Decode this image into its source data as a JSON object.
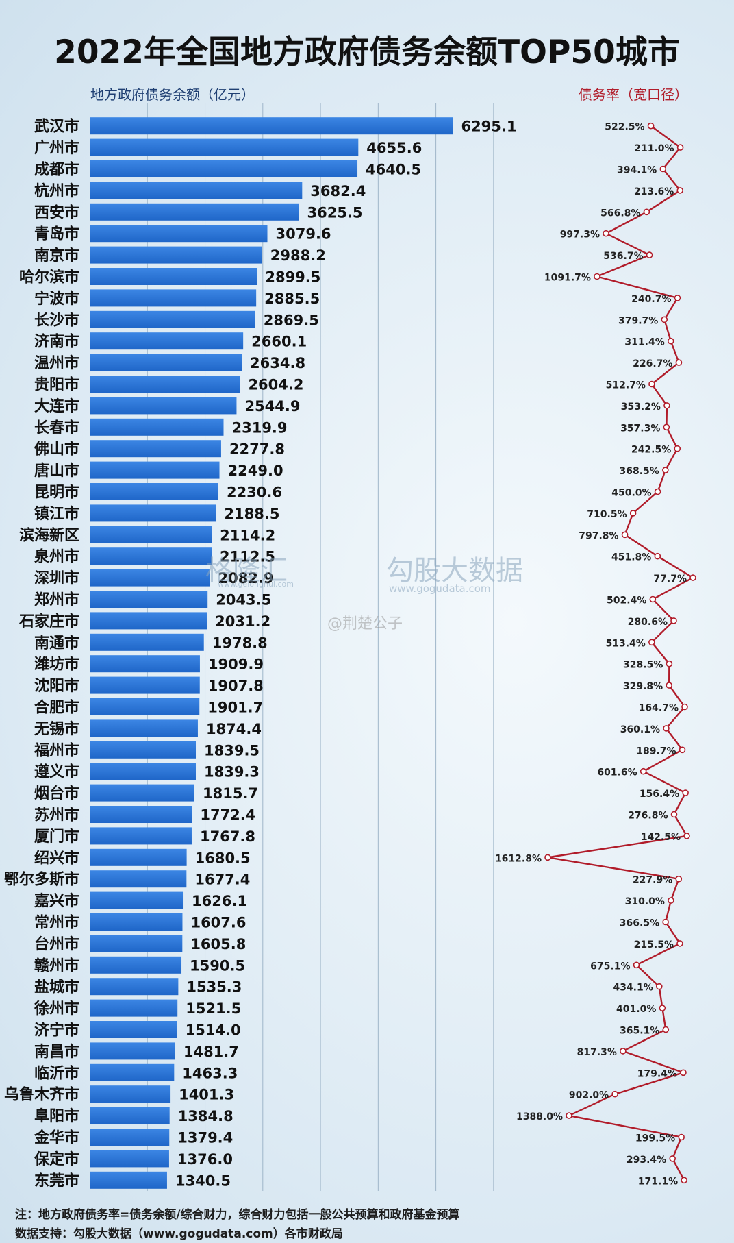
{
  "chart_data": {
    "type": "bar",
    "title": "2022年全国地方政府债务余额TOP50城市",
    "left_axis_label": "地方政府债务余额（亿元）",
    "right_axis_label": "债务率（宽口径）",
    "categories": [
      "武汉市",
      "广州市",
      "成都市",
      "杭州市",
      "西安市",
      "青岛市",
      "南京市",
      "哈尔滨市",
      "宁波市",
      "长沙市",
      "济南市",
      "温州市",
      "贵阳市",
      "大连市",
      "长春市",
      "佛山市",
      "唐山市",
      "昆明市",
      "镇江市",
      "滨海新区",
      "泉州市",
      "深圳市",
      "郑州市",
      "石家庄市",
      "南通市",
      "潍坊市",
      "沈阳市",
      "合肥市",
      "无锡市",
      "福州市",
      "遵义市",
      "烟台市",
      "苏州市",
      "厦门市",
      "绍兴市",
      "鄂尔多斯市",
      "嘉兴市",
      "常州市",
      "台州市",
      "赣州市",
      "盐城市",
      "徐州市",
      "济宁市",
      "南昌市",
      "临沂市",
      "乌鲁木齐市",
      "阜阳市",
      "金华市",
      "保定市",
      "东莞市"
    ],
    "series": [
      {
        "name": "地方政府债务余额（亿元）",
        "values": [
          6295.1,
          4655.6,
          4640.5,
          3682.4,
          3625.5,
          3079.6,
          2988.2,
          2899.5,
          2885.5,
          2869.5,
          2660.1,
          2634.8,
          2604.2,
          2544.9,
          2319.9,
          2277.8,
          2249.0,
          2230.6,
          2188.5,
          2114.2,
          2112.5,
          2082.9,
          2043.5,
          2031.2,
          1978.8,
          1909.9,
          1907.8,
          1901.7,
          1874.4,
          1839.5,
          1839.3,
          1815.7,
          1772.4,
          1767.8,
          1680.5,
          1677.4,
          1626.1,
          1607.6,
          1605.8,
          1590.5,
          1535.3,
          1521.5,
          1514.0,
          1481.7,
          1463.3,
          1401.3,
          1384.8,
          1379.4,
          1376.0,
          1340.5
        ],
        "labels": [
          "6295.1",
          "4655.6",
          "4640.5",
          "3682.4",
          "3625.5",
          "3079.6",
          "2988.2",
          "2899.5",
          "2885.5",
          "2869.5",
          "2660.1",
          "2634.8",
          "2604.2",
          "2544.9",
          "2319.9",
          "2277.8",
          "2249.0",
          "2230.6",
          "2188.5",
          "2114.2",
          "2112.5",
          "2082.9",
          "2043.5",
          "2031.2",
          "1978.8",
          "1909.9",
          "1907.8",
          "1901.7",
          "1874.4",
          "1839.5",
          "1839.3",
          "1815.7",
          "1772.4",
          "1767.8",
          "1680.5",
          "1677.4",
          "1626.1",
          "1607.6",
          "1605.8",
          "1590.5",
          "1535.3",
          "1521.5",
          "1514.0",
          "1481.7",
          "1463.3",
          "1401.3",
          "1384.8",
          "1379.4",
          "1376.0",
          "1340.5"
        ],
        "color": "#1f66c8"
      },
      {
        "name": "债务率（宽口径）",
        "values": [
          522.5,
          211.0,
          394.1,
          213.6,
          566.8,
          997.3,
          536.7,
          1091.7,
          240.7,
          379.7,
          311.4,
          226.7,
          512.7,
          353.2,
          357.3,
          242.5,
          368.5,
          450.0,
          710.5,
          797.8,
          451.8,
          77.7,
          502.4,
          280.6,
          513.4,
          328.5,
          329.8,
          164.7,
          360.1,
          189.7,
          601.6,
          156.4,
          276.8,
          142.5,
          1612.8,
          227.9,
          310.0,
          366.5,
          215.5,
          675.1,
          434.1,
          401.0,
          365.1,
          817.3,
          179.4,
          902.0,
          1388.0,
          199.5,
          293.4,
          171.1
        ],
        "labels": [
          "522.5%",
          "211.0%",
          "394.1%",
          "213.6%",
          "566.8%",
          "997.3%",
          "536.7%",
          "1091.7%",
          "240.7%",
          "379.7%",
          "311.4%",
          "226.7%",
          "512.7%",
          "353.2%",
          "357.3%",
          "242.5%",
          "368.5%",
          "450.0%",
          "710.5%",
          "797.8%",
          "451.8%",
          "77.7%",
          "502.4%",
          "280.6%",
          "513.4%",
          "328.5%",
          "329.8%",
          "164.7%",
          "360.1%",
          "189.7%",
          "601.6%",
          "156.4%",
          "276.8%",
          "142.5%",
          "1612.8%",
          "227.9%",
          "310.0%",
          "366.5%",
          "215.5%",
          "675.1%",
          "434.1%",
          "401.0%",
          "365.1%",
          "817.3%",
          "179.4%",
          "902.0%",
          "1388.0%",
          "199.5%",
          "293.4%",
          "171.1%"
        ],
        "color": "#b11c2a"
      }
    ],
    "bar_axis_max": 7500,
    "rate_axis_reversed": true,
    "grid": true
  },
  "footer": {
    "note": "注：地方政府债务率=债务余额/综合财力，综合财力包括一般公共预算和政府基金预算",
    "source": "数据支持：勾股大数据（www.gogudata.com）各市财政局"
  },
  "watermarks": {
    "brand1": "格隆汇",
    "brand1_url": "www.gelonghui.com",
    "brand2": "勾股大数据",
    "brand2_url": "www.gogudata.com",
    "weibo": "@荆楚公子"
  },
  "colors": {
    "bar": "#1f66c8",
    "line": "#b11c2a",
    "right_label": "#b11c2a",
    "left_label": "#1f3f73"
  }
}
